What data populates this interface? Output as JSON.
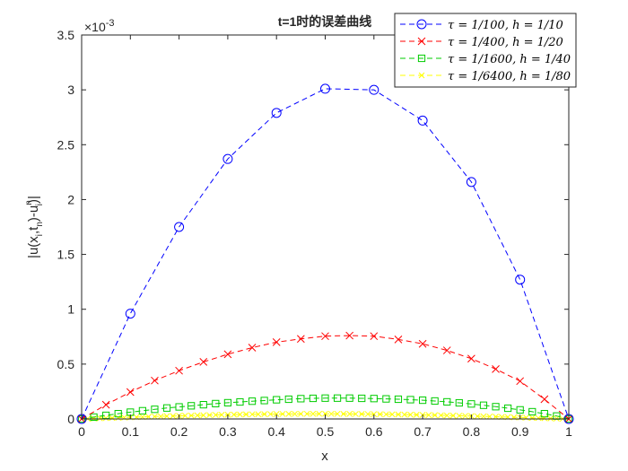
{
  "chart_data": {
    "type": "line",
    "title": "t=1时的误差曲线",
    "xlabel": "x",
    "ylabel": "|u(x_i,t_n)-u_i^n|",
    "ylabel_parts": {
      "a": "|u(x",
      "sub_i": "i",
      "b": ",t",
      "sub_n": "n",
      "c": ")-u",
      "sup_n": "n",
      "sub_i2": "i",
      "d": ")|"
    },
    "exponent_label": {
      "prefix": "×10",
      "power": "-3"
    },
    "xlim": [
      0,
      1
    ],
    "ylim": [
      0,
      3.5
    ],
    "xticks": [
      0,
      0.1,
      0.2,
      0.3,
      0.4,
      0.5,
      0.6,
      0.7,
      0.8,
      0.9,
      1
    ],
    "xtick_labels": [
      "0",
      "0.1",
      "0.2",
      "0.3",
      "0.4",
      "0.5",
      "0.6",
      "0.7",
      "0.8",
      "0.9",
      "1"
    ],
    "yticks": [
      0,
      0.5,
      1,
      1.5,
      2,
      2.5,
      3,
      3.5
    ],
    "ytick_labels": [
      "0",
      "0.5",
      "1",
      "1.5",
      "2",
      "2.5",
      "3",
      "3.5"
    ],
    "legend_position": "top-right",
    "series": [
      {
        "name": "τ = 1/100, h = 1/10",
        "color": "#0000ff",
        "marker": "circle",
        "x": [
          0,
          0.1,
          0.2,
          0.3,
          0.4,
          0.5,
          0.6,
          0.7,
          0.8,
          0.9,
          1
        ],
        "values": [
          0,
          0.96,
          1.75,
          2.37,
          2.79,
          3.01,
          3.0,
          2.72,
          2.16,
          1.27,
          0
        ]
      },
      {
        "name": "τ = 1/400, h = 1/20",
        "color": "#ff0000",
        "marker": "x",
        "x": [
          0,
          0.05,
          0.1,
          0.15,
          0.2,
          0.25,
          0.3,
          0.35,
          0.4,
          0.45,
          0.5,
          0.55,
          0.6,
          0.65,
          0.7,
          0.75,
          0.8,
          0.85,
          0.9,
          0.95,
          1
        ],
        "values": [
          0,
          0.13,
          0.245,
          0.35,
          0.44,
          0.52,
          0.59,
          0.65,
          0.7,
          0.73,
          0.755,
          0.76,
          0.755,
          0.725,
          0.685,
          0.625,
          0.55,
          0.455,
          0.345,
          0.18,
          0
        ]
      },
      {
        "name": "τ = 1/1600, h = 1/40",
        "color": "#00cc00",
        "marker": "square",
        "x": [
          0,
          0.025,
          0.05,
          0.075,
          0.1,
          0.125,
          0.15,
          0.175,
          0.2,
          0.225,
          0.25,
          0.275,
          0.3,
          0.325,
          0.35,
          0.375,
          0.4,
          0.425,
          0.45,
          0.475,
          0.5,
          0.525,
          0.55,
          0.575,
          0.6,
          0.625,
          0.65,
          0.675,
          0.7,
          0.725,
          0.75,
          0.775,
          0.8,
          0.825,
          0.85,
          0.875,
          0.9,
          0.925,
          0.95,
          0.975,
          1
        ],
        "values": [
          0,
          0.017,
          0.033,
          0.048,
          0.062,
          0.075,
          0.088,
          0.1,
          0.11,
          0.12,
          0.13,
          0.14,
          0.148,
          0.155,
          0.162,
          0.168,
          0.175,
          0.18,
          0.185,
          0.188,
          0.19,
          0.19,
          0.19,
          0.188,
          0.186,
          0.183,
          0.18,
          0.176,
          0.171,
          0.164,
          0.156,
          0.147,
          0.137,
          0.125,
          0.112,
          0.098,
          0.083,
          0.066,
          0.048,
          0.027,
          0
        ]
      },
      {
        "name": "τ = 1/6400, h = 1/80",
        "color": "#ffff00",
        "marker": "x",
        "x": [],
        "values": [],
        "n_points": 81,
        "peak": 0.047
      }
    ]
  }
}
